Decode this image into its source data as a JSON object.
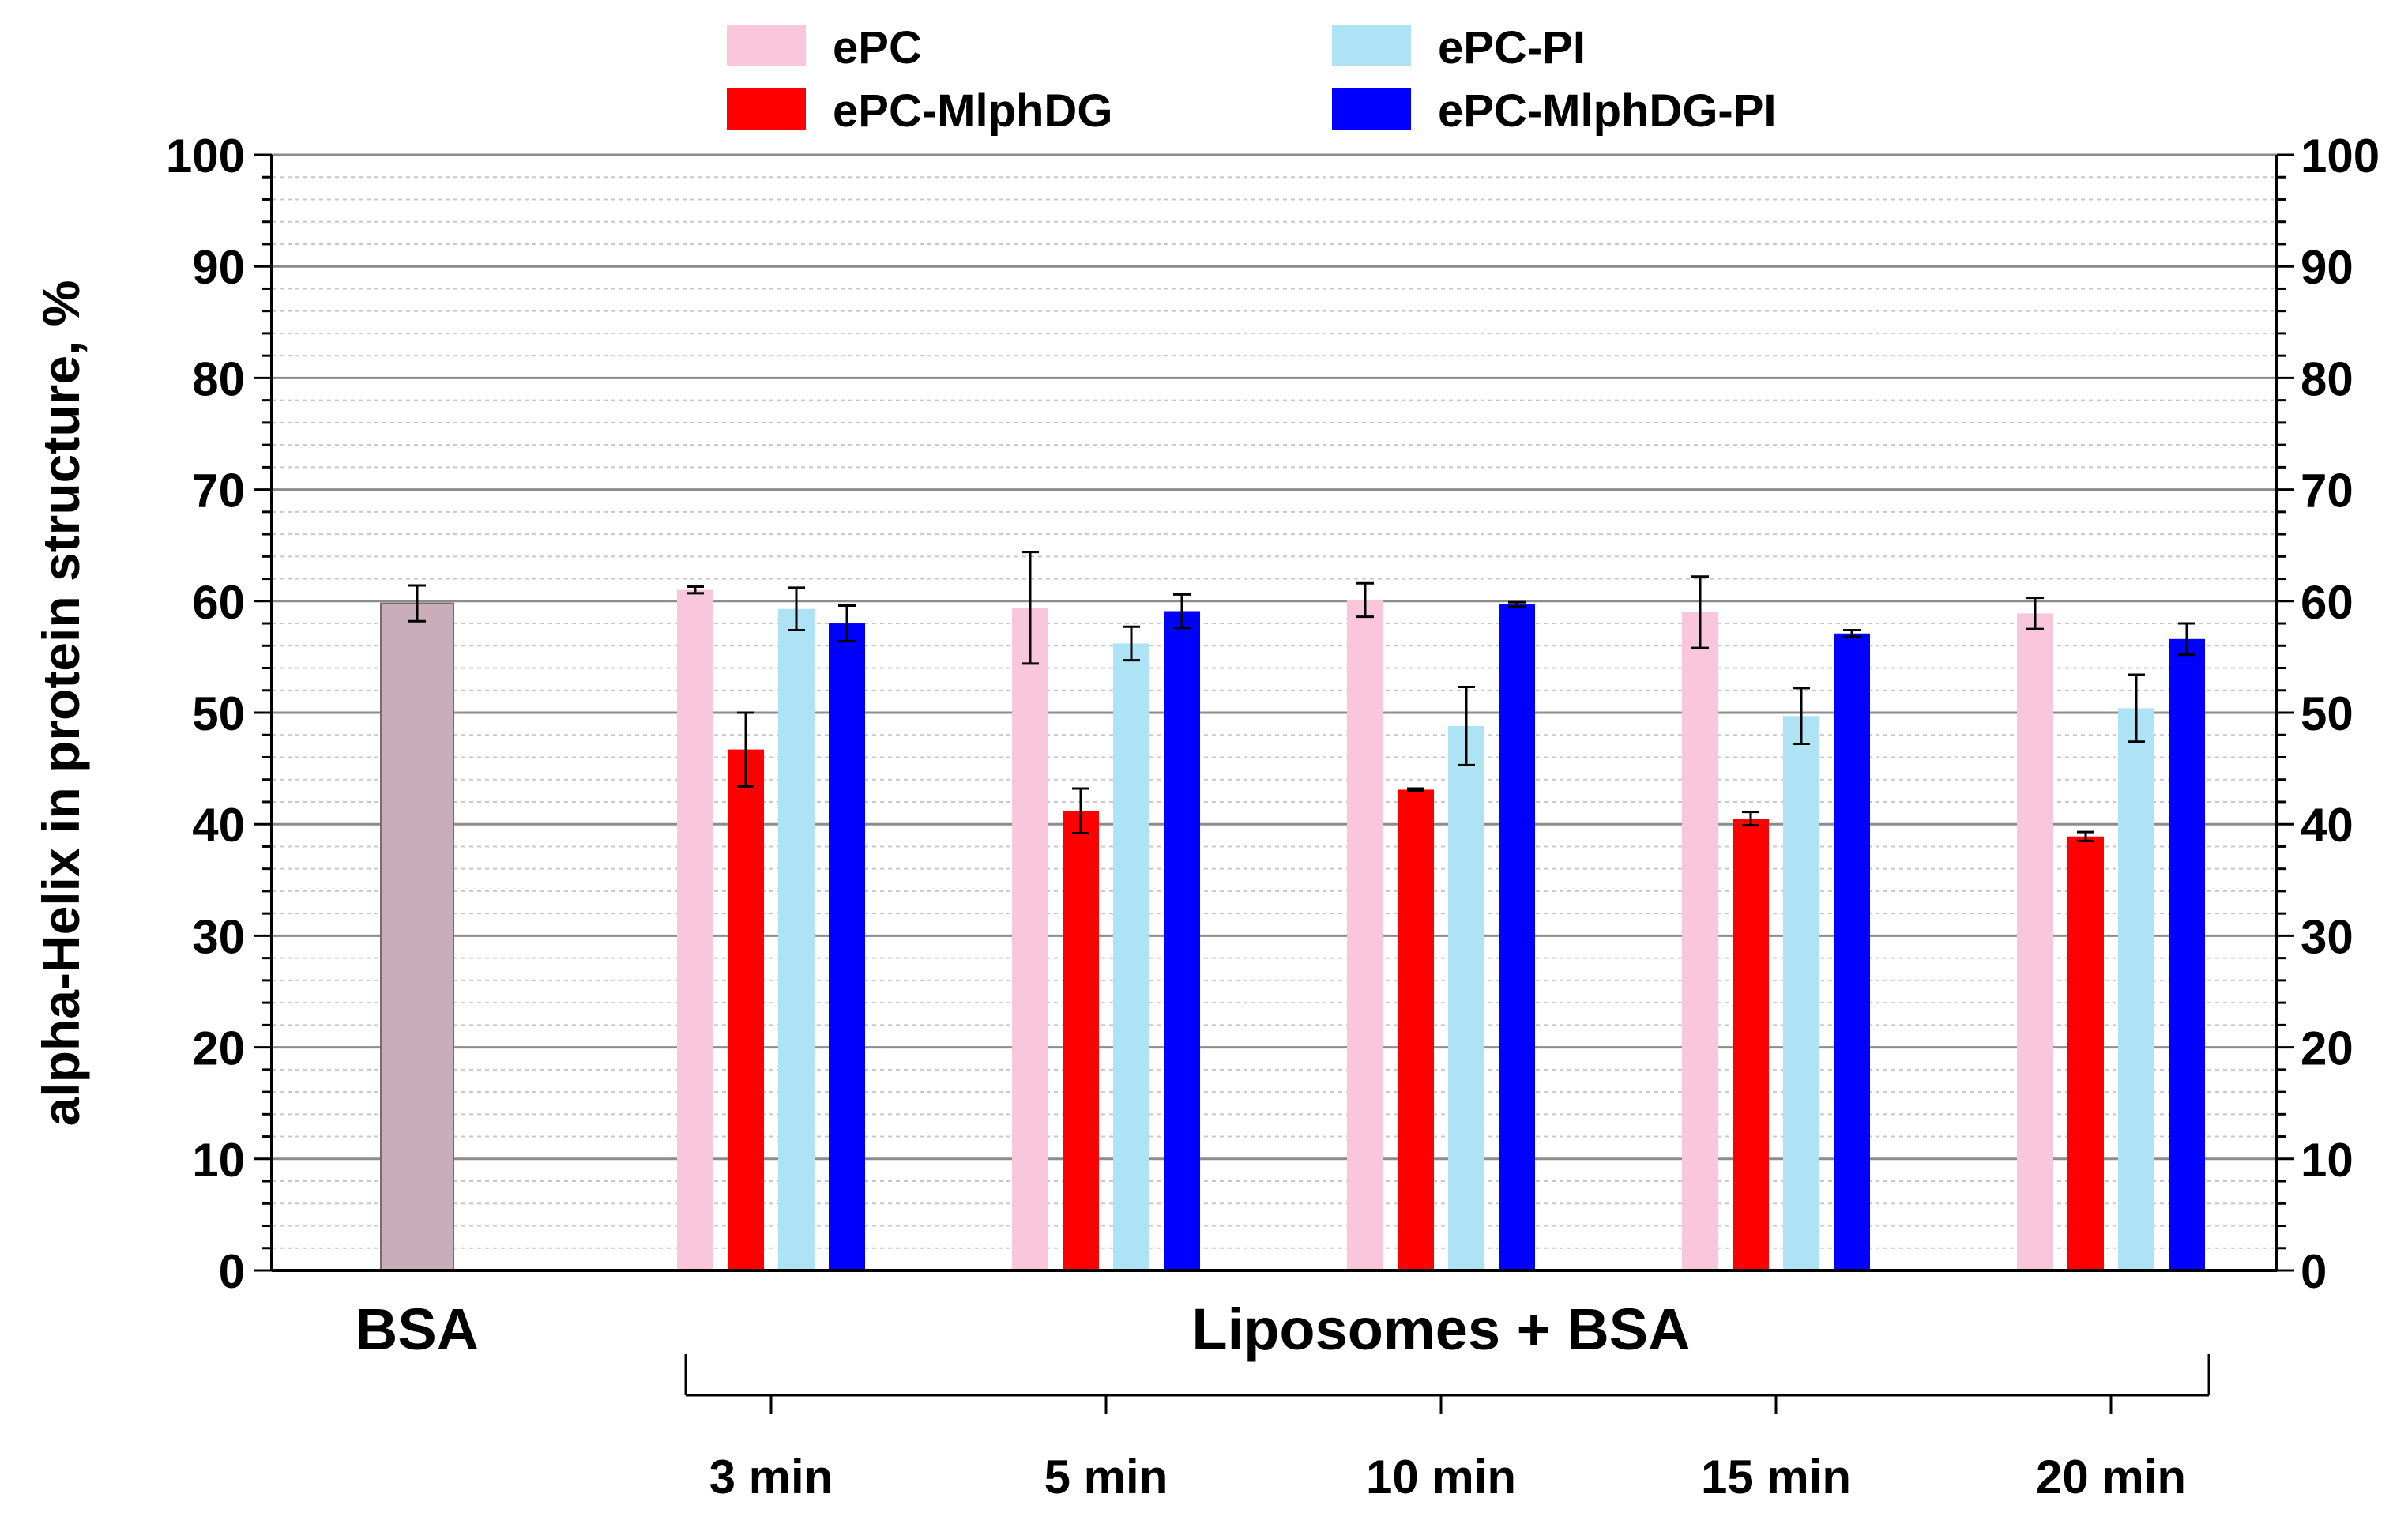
{
  "chart_data": {
    "type": "bar",
    "ylabel": "alpha-Helix in protein structure, %",
    "ylim": [
      0,
      100
    ],
    "y_ticks": [
      0,
      10,
      20,
      30,
      40,
      50,
      60,
      70,
      80,
      90,
      100
    ],
    "y_minor_step": 2,
    "right_axis": true,
    "grid": true,
    "legend_position": "top",
    "group_bracket_label": "Liposomes + BSA",
    "reference": {
      "label": "BSA",
      "value": 59.8,
      "error": 1.6,
      "color": "#c9aeb9"
    },
    "categories": [
      "3 min",
      "5 min",
      "10 min",
      "15 min",
      "20 min"
    ],
    "series": [
      {
        "name": "ePC",
        "color": "#f9c6dc",
        "values": [
          61.0,
          59.4,
          60.1,
          59.0,
          58.9
        ],
        "errors": [
          0.3,
          5.0,
          1.5,
          3.2,
          1.4
        ]
      },
      {
        "name": "ePC-MlphDG",
        "color": "#ff0000",
        "values": [
          46.7,
          41.2,
          43.1,
          40.5,
          38.9
        ],
        "errors": [
          3.3,
          2.0,
          0.1,
          0.6,
          0.4
        ]
      },
      {
        "name": "ePC-PI",
        "color": "#aee3f6",
        "values": [
          59.3,
          56.2,
          48.8,
          49.7,
          50.4
        ],
        "errors": [
          1.9,
          1.5,
          3.5,
          2.5,
          3.0
        ]
      },
      {
        "name": "ePC-MlphDG-PI",
        "color": "#0000ff",
        "values": [
          58.0,
          59.1,
          59.7,
          57.1,
          56.6
        ],
        "errors": [
          1.6,
          1.5,
          0.2,
          0.3,
          1.4
        ]
      }
    ]
  }
}
